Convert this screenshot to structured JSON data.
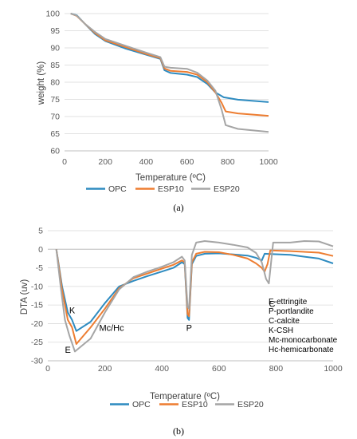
{
  "chart_data": [
    {
      "type": "line",
      "panel_label": "(a)",
      "xlabel": "Temperature (ºC)",
      "ylabel": "weight (%)",
      "xlim": [
        0,
        1000
      ],
      "ylim": [
        60,
        100
      ],
      "xticks": [
        0,
        200,
        400,
        600,
        800,
        1000
      ],
      "yticks": [
        60,
        65,
        70,
        75,
        80,
        85,
        90,
        95,
        100
      ],
      "grid": true,
      "legend_position": "bottom",
      "series": [
        {
          "name": "OPC",
          "color": "#2E8BC0",
          "points": [
            [
              30,
              100
            ],
            [
              60,
              99.5
            ],
            [
              100,
              97
            ],
            [
              150,
              94
            ],
            [
              200,
              92
            ],
            [
              300,
              89.8
            ],
            [
              400,
              88
            ],
            [
              470,
              86.8
            ],
            [
              490,
              83.5
            ],
            [
              520,
              82.7
            ],
            [
              600,
              82.2
            ],
            [
              650,
              81.5
            ],
            [
              700,
              79.5
            ],
            [
              740,
              77
            ],
            [
              780,
              75.6
            ],
            [
              850,
              74.9
            ],
            [
              1000,
              74.2
            ]
          ]
        },
        {
          "name": "ESP10",
          "color": "#ED7D31",
          "points": [
            [
              30,
              100
            ],
            [
              60,
              99.3
            ],
            [
              100,
              97
            ],
            [
              150,
              94.3
            ],
            [
              200,
              92.2
            ],
            [
              300,
              90.2
            ],
            [
              400,
              88.2
            ],
            [
              470,
              87
            ],
            [
              490,
              84
            ],
            [
              520,
              83.3
            ],
            [
              600,
              83
            ],
            [
              650,
              82.2
            ],
            [
              700,
              80
            ],
            [
              740,
              77
            ],
            [
              770,
              74
            ],
            [
              790,
              71.5
            ],
            [
              850,
              70.9
            ],
            [
              1000,
              70.2
            ]
          ]
        },
        {
          "name": "ESP20",
          "color": "#A5A5A5",
          "points": [
            [
              30,
              100
            ],
            [
              60,
              99.4
            ],
            [
              100,
              97
            ],
            [
              150,
              94.6
            ],
            [
              200,
              92.6
            ],
            [
              300,
              90.6
            ],
            [
              400,
              88.6
            ],
            [
              470,
              87.3
            ],
            [
              490,
              84.5
            ],
            [
              520,
              84.2
            ],
            [
              600,
              83.9
            ],
            [
              650,
              82.8
            ],
            [
              700,
              80.5
            ],
            [
              740,
              77.5
            ],
            [
              770,
              72
            ],
            [
              790,
              67.5
            ],
            [
              850,
              66.4
            ],
            [
              1000,
              65.5
            ]
          ]
        }
      ]
    },
    {
      "type": "line",
      "panel_label": "(b)",
      "xlabel": "Temperature (ºC)",
      "ylabel": "DTA (uv)",
      "xlim": [
        0,
        1000
      ],
      "ylim": [
        -30,
        5
      ],
      "xticks": [
        0,
        200,
        400,
        600,
        800,
        1000
      ],
      "yticks": [
        -30,
        -25,
        -20,
        -15,
        -10,
        -5,
        0,
        5
      ],
      "grid": true,
      "legend_position": "bottom",
      "annotations": [
        {
          "text": "K",
          "x": 75,
          "y": -17.2
        },
        {
          "text": "E",
          "x": 60,
          "y": -27.8
        },
        {
          "text": "Mc/Hc",
          "x": 180,
          "y": -22
        },
        {
          "text": "P",
          "x": 485,
          "y": -22
        },
        {
          "text": "C",
          "x": 775,
          "y": -15.5
        }
      ],
      "key_lines": [
        "E-ettringite",
        "P-portlandite",
        "C-calcite",
        "K-CSH",
        "Mc-monocarbonate",
        "Hc-hemicarbonate"
      ],
      "series": [
        {
          "name": "OPC",
          "color": "#2E8BC0",
          "points": [
            [
              30,
              0
            ],
            [
              50,
              -10
            ],
            [
              70,
              -17
            ],
            [
              85,
              -19
            ],
            [
              100,
              -22
            ],
            [
              150,
              -19.5
            ],
            [
              200,
              -14.5
            ],
            [
              250,
              -10
            ],
            [
              300,
              -8.5
            ],
            [
              350,
              -7.2
            ],
            [
              400,
              -6
            ],
            [
              440,
              -5
            ],
            [
              470,
              -3.5
            ],
            [
              480,
              -4
            ],
            [
              490,
              -18.5
            ],
            [
              495,
              -19
            ],
            [
              505,
              -4
            ],
            [
              520,
              -1.8
            ],
            [
              550,
              -1.2
            ],
            [
              600,
              -1.1
            ],
            [
              650,
              -1.4
            ],
            [
              700,
              -1.7
            ],
            [
              730,
              -2.3
            ],
            [
              750,
              -3
            ],
            [
              760,
              -1.2
            ],
            [
              780,
              -1.3
            ],
            [
              850,
              -1.5
            ],
            [
              950,
              -2.5
            ],
            [
              1000,
              -3.8
            ]
          ]
        },
        {
          "name": "ESP10",
          "color": "#ED7D31",
          "points": [
            [
              30,
              0
            ],
            [
              50,
              -11
            ],
            [
              70,
              -19
            ],
            [
              85,
              -21
            ],
            [
              100,
              -25.5
            ],
            [
              150,
              -21
            ],
            [
              200,
              -16
            ],
            [
              250,
              -10.5
            ],
            [
              300,
              -7.8
            ],
            [
              350,
              -6.5
            ],
            [
              400,
              -5.2
            ],
            [
              440,
              -4.2
            ],
            [
              470,
              -3
            ],
            [
              480,
              -3.5
            ],
            [
              490,
              -17.5
            ],
            [
              495,
              -18
            ],
            [
              505,
              -3.5
            ],
            [
              520,
              -1.2
            ],
            [
              550,
              -0.7
            ],
            [
              600,
              -0.8
            ],
            [
              650,
              -1.5
            ],
            [
              700,
              -2.5
            ],
            [
              730,
              -3.8
            ],
            [
              750,
              -5
            ],
            [
              760,
              -6
            ],
            [
              770,
              -4
            ],
            [
              780,
              -0.3
            ],
            [
              850,
              -0.5
            ],
            [
              950,
              -0.9
            ],
            [
              1000,
              -1.8
            ]
          ]
        },
        {
          "name": "ESP20",
          "color": "#A5A5A5",
          "points": [
            [
              30,
              0
            ],
            [
              45,
              -10
            ],
            [
              60,
              -19
            ],
            [
              75,
              -23
            ],
            [
              95,
              -27.5
            ],
            [
              150,
              -24
            ],
            [
              200,
              -17
            ],
            [
              250,
              -10.8
            ],
            [
              300,
              -7.5
            ],
            [
              350,
              -6
            ],
            [
              400,
              -4.7
            ],
            [
              440,
              -3.5
            ],
            [
              470,
              -2
            ],
            [
              480,
              -3
            ],
            [
              490,
              -15.5
            ],
            [
              495,
              -16
            ],
            [
              505,
              -1.5
            ],
            [
              520,
              1.8
            ],
            [
              550,
              2.2
            ],
            [
              600,
              1.8
            ],
            [
              650,
              1.2
            ],
            [
              700,
              0.5
            ],
            [
              730,
              -1
            ],
            [
              750,
              -3.5
            ],
            [
              765,
              -8
            ],
            [
              775,
              -9.2
            ],
            [
              790,
              1.8
            ],
            [
              850,
              1.8
            ],
            [
              900,
              2.2
            ],
            [
              950,
              2.1
            ],
            [
              1000,
              0.8
            ]
          ]
        }
      ]
    }
  ]
}
